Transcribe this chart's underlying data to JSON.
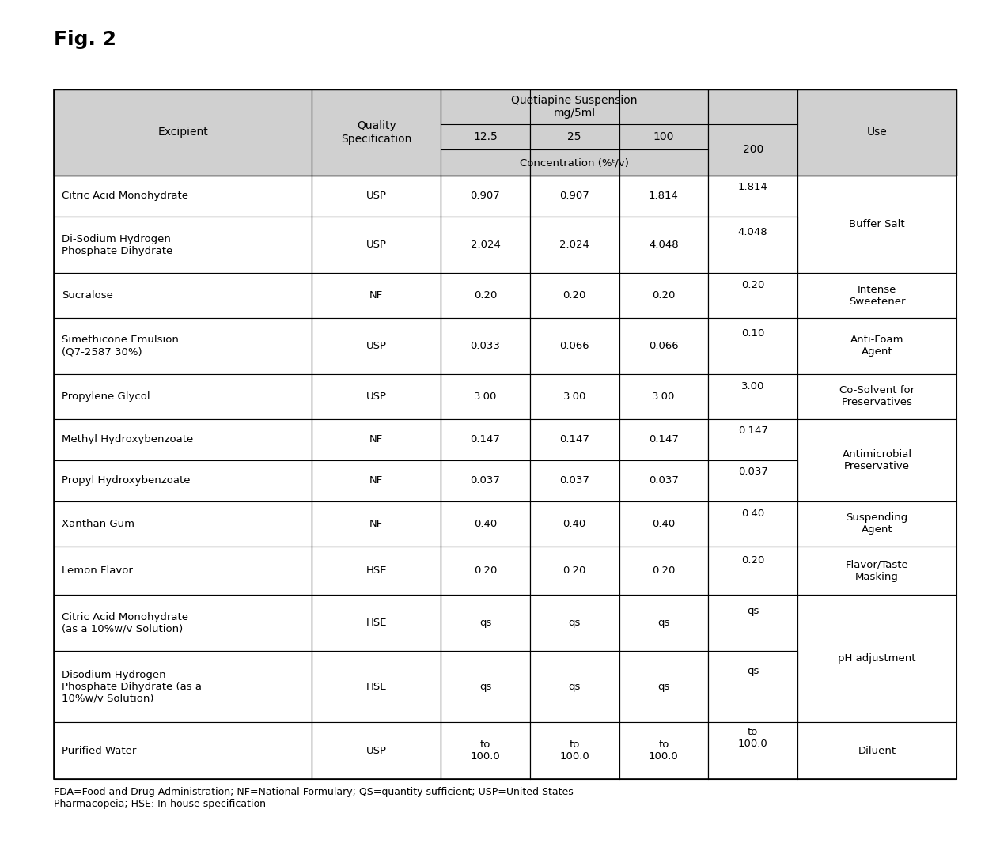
{
  "title": "Fig. 2",
  "footnote": "FDA=Food and Drug Administration; NF=National Formulary; QS=quantity sufficient; USP=United States\nPharmacopeia; HSE: In-house specification",
  "rows": [
    [
      "Citric Acid Monohydrate",
      "USP",
      "0.907",
      "0.907",
      "1.814",
      "1.814",
      "Buffer Salt"
    ],
    [
      "Di-Sodium Hydrogen\nPhosphate Dihydrate",
      "USP",
      "2.024",
      "2.024",
      "4.048",
      "4.048",
      ""
    ],
    [
      "Sucralose",
      "NF",
      "0.20",
      "0.20",
      "0.20",
      "0.20",
      "Intense\nSweetener"
    ],
    [
      "Simethicone Emulsion\n(Q7-2587 30%)",
      "USP",
      "0.033",
      "0.066",
      "0.066",
      "0.10",
      "Anti-Foam\nAgent"
    ],
    [
      "Propylene Glycol",
      "USP",
      "3.00",
      "3.00",
      "3.00",
      "3.00",
      "Co-Solvent for\nPreservatives"
    ],
    [
      "Methyl Hydroxybenzoate",
      "NF",
      "0.147",
      "0.147",
      "0.147",
      "0.147",
      "Antimicrobial\nPreservative"
    ],
    [
      "Propyl Hydroxybenzoate",
      "NF",
      "0.037",
      "0.037",
      "0.037",
      "0.037",
      ""
    ],
    [
      "Xanthan Gum",
      "NF",
      "0.40",
      "0.40",
      "0.40",
      "0.40",
      "Suspending\nAgent"
    ],
    [
      "Lemon Flavor",
      "HSE",
      "0.20",
      "0.20",
      "0.20",
      "0.20",
      "Flavor/Taste\nMasking"
    ],
    [
      "Citric Acid Monohydrate\n(as a 10%w/v Solution)",
      "HSE",
      "qs",
      "qs",
      "qs",
      "qs",
      ""
    ],
    [
      "Disodium Hydrogen\nPhosphate Dihydrate (as a\n10%w/v Solution)",
      "HSE",
      "qs",
      "qs",
      "qs",
      "qs",
      "pH adjustment"
    ],
    [
      "Purified Water",
      "USP",
      "to\n100.0",
      "to\n100.0",
      "to\n100.0",
      "to\n100.0",
      "Diluent"
    ]
  ],
  "bg_header": "#d0d0d0",
  "bg_white": "#ffffff",
  "border_color": "#000000",
  "text_color": "#000000",
  "figsize": [
    12.4,
    10.76
  ],
  "dpi": 100
}
